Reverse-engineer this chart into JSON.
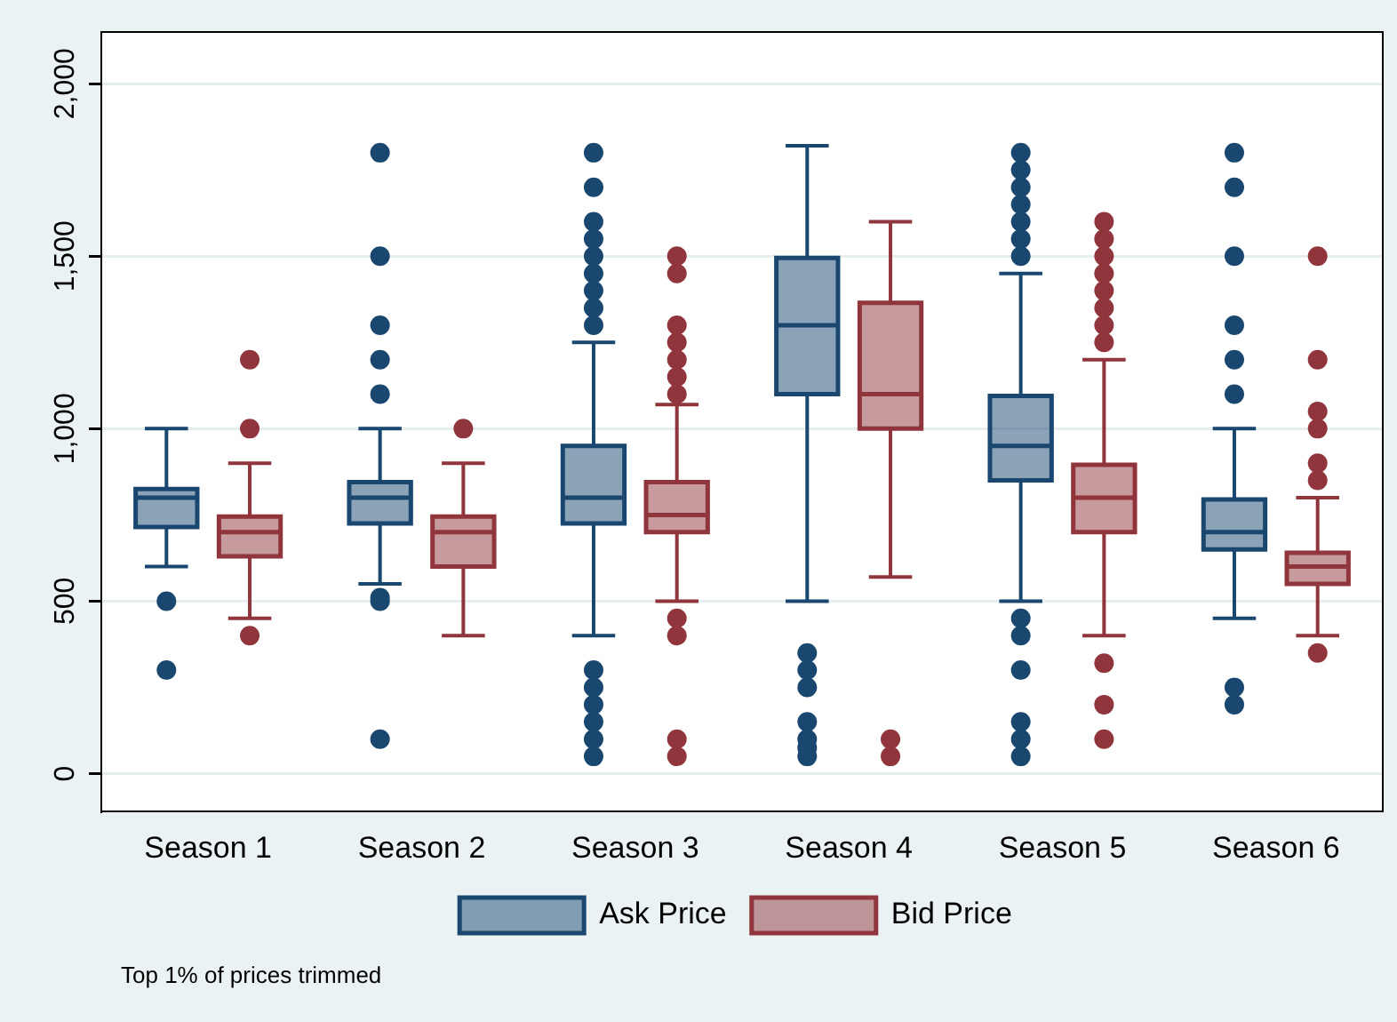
{
  "chart_data": {
    "type": "box",
    "categories": [
      "Season 1",
      "Season 2",
      "Season 3",
      "Season 4",
      "Season 5",
      "Season 6"
    ],
    "series": [
      {
        "name": "Ask Price",
        "color": "#1a476f",
        "boxes": [
          {
            "low": 600,
            "q1": 715,
            "median": 800,
            "q3": 825,
            "high": 1000,
            "outliers": [
              300,
              500
            ]
          },
          {
            "low": 550,
            "q1": 725,
            "median": 800,
            "q3": 845,
            "high": 1000,
            "outliers": [
              100,
              500,
              510,
              1100,
              1200,
              1300,
              1500,
              1800
            ]
          },
          {
            "low": 400,
            "q1": 725,
            "median": 800,
            "q3": 950,
            "high": 1250,
            "outliers": [
              50,
              100,
              150,
              200,
              250,
              300,
              1300,
              1350,
              1400,
              1450,
              1500,
              1550,
              1600,
              1700,
              1800
            ]
          },
          {
            "low": 500,
            "q1": 1100,
            "median": 1300,
            "q3": 1495,
            "high": 1820,
            "outliers": [
              50,
              75,
              100,
              150,
              250,
              300,
              350
            ]
          },
          {
            "low": 500,
            "q1": 850,
            "median": 950,
            "q3": 1095,
            "high": 1450,
            "outliers": [
              50,
              100,
              150,
              300,
              400,
              450,
              1500,
              1550,
              1600,
              1650,
              1700,
              1750,
              1800
            ]
          },
          {
            "low": 450,
            "q1": 650,
            "median": 700,
            "q3": 795,
            "high": 1000,
            "outliers": [
              200,
              250,
              1100,
              1200,
              1300,
              1500,
              1700,
              1800
            ]
          }
        ]
      },
      {
        "name": "Bid Price",
        "color": "#90353b",
        "boxes": [
          {
            "low": 450,
            "q1": 630,
            "median": 700,
            "q3": 745,
            "high": 900,
            "outliers": [
              400,
              1000,
              1200
            ]
          },
          {
            "low": 400,
            "q1": 600,
            "median": 700,
            "q3": 745,
            "high": 900,
            "outliers": [
              1000
            ]
          },
          {
            "low": 500,
            "q1": 700,
            "median": 750,
            "q3": 845,
            "high": 1070,
            "outliers": [
              50,
              100,
              400,
              450,
              1100,
              1150,
              1200,
              1250,
              1300,
              1450,
              1500
            ]
          },
          {
            "low": 570,
            "q1": 1000,
            "median": 1100,
            "q3": 1365,
            "high": 1600,
            "outliers": [
              50,
              100
            ]
          },
          {
            "low": 400,
            "q1": 700,
            "median": 800,
            "q3": 895,
            "high": 1200,
            "outliers": [
              100,
              200,
              320,
              1250,
              1300,
              1350,
              1400,
              1450,
              1500,
              1550,
              1600
            ]
          },
          {
            "low": 400,
            "q1": 550,
            "median": 600,
            "q3": 640,
            "high": 800,
            "outliers": [
              350,
              850,
              900,
              1000,
              1050,
              1200,
              1500
            ]
          }
        ]
      }
    ],
    "ylim": [
      -110,
      2150
    ],
    "yticks": [
      0,
      500,
      {
        "value": 1000,
        "label": "1,000"
      },
      {
        "value": 1500,
        "label": "1,500"
      },
      {
        "value": 2000,
        "label": "2,000"
      }
    ],
    "grid": "y",
    "legend": "bottom",
    "marker": "circle",
    "annotations": [
      "Top 1% of prices trimmed"
    ]
  }
}
